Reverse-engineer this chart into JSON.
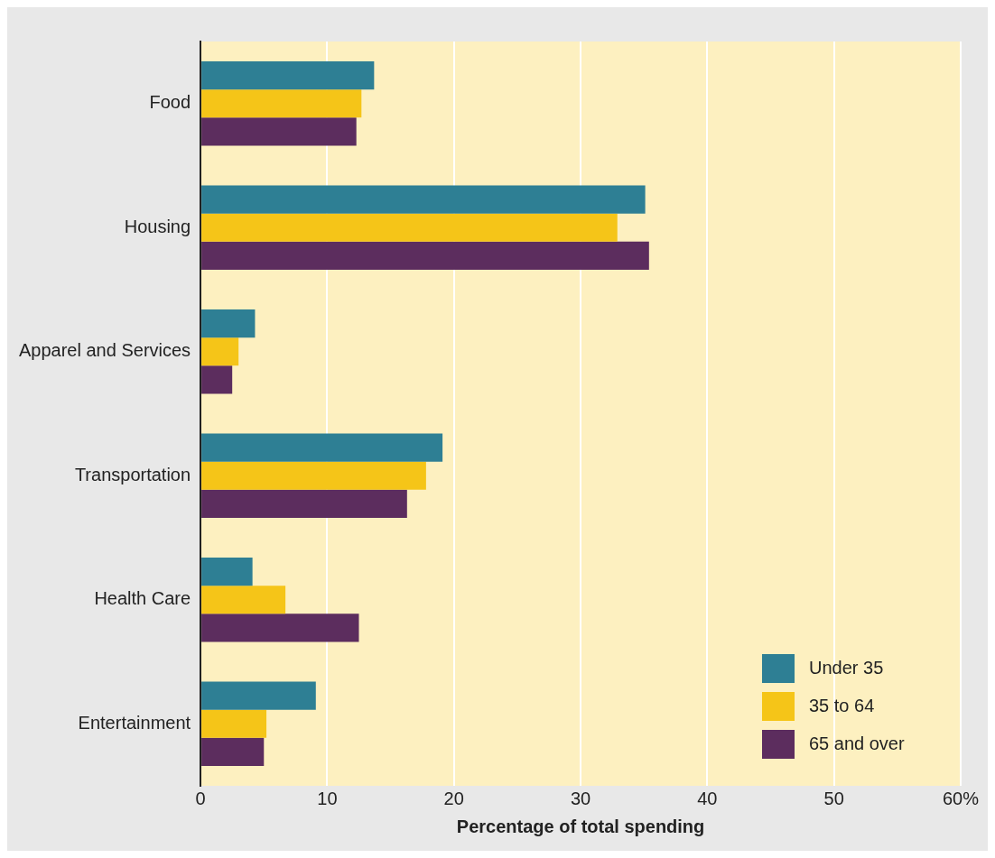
{
  "chart_data": {
    "type": "bar",
    "orientation": "horizontal",
    "xlabel": "Percentage of total spending",
    "categories": [
      "Food",
      "Housing",
      "Apparel and Services",
      "Transportation",
      "Health Care",
      "Entertainment"
    ],
    "series": [
      {
        "name": "Under 35",
        "color": "#2e7f94",
        "values": [
          13.7,
          35.1,
          4.3,
          19.1,
          4.1,
          9.1
        ]
      },
      {
        "name": "35 to 64",
        "color": "#f5c518",
        "values": [
          12.7,
          32.9,
          3.0,
          17.8,
          6.7,
          5.2
        ]
      },
      {
        "name": "65 and over",
        "color": "#5c2d5e",
        "values": [
          12.3,
          35.4,
          2.5,
          16.3,
          12.5,
          5.0
        ]
      }
    ],
    "xlim": [
      0,
      60
    ],
    "xticks": [
      0,
      10,
      20,
      30,
      40,
      50,
      {
        "value": 60,
        "label": "60%"
      }
    ],
    "grid": "x",
    "legend": "bottom right"
  }
}
